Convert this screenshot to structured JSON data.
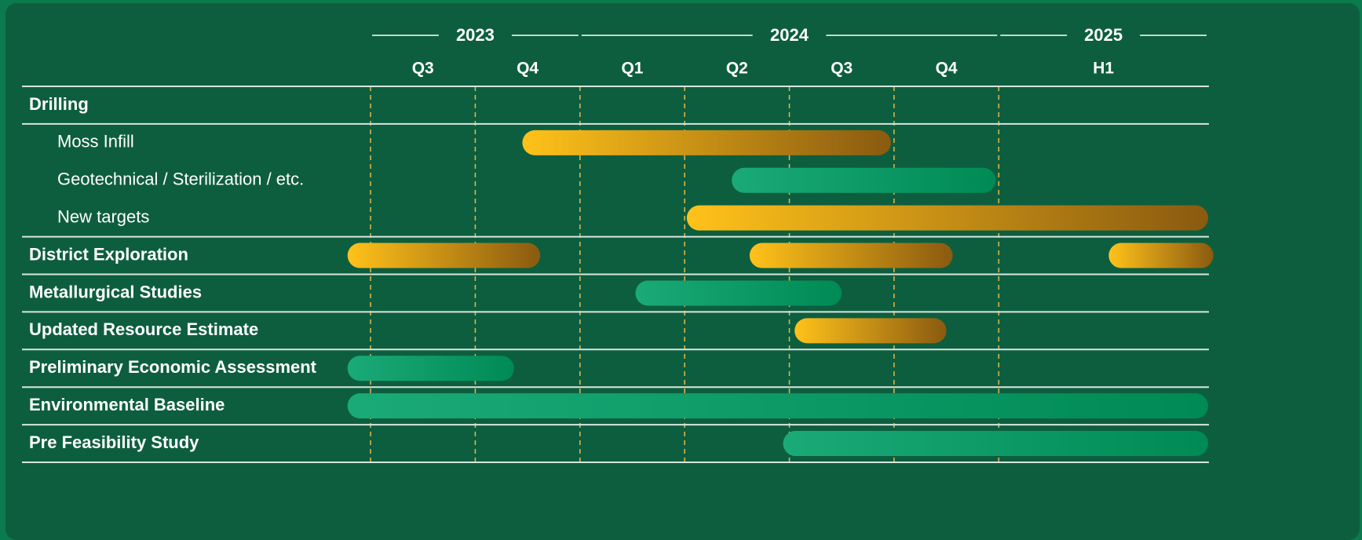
{
  "chart_data": {
    "type": "gantt",
    "xlim": [
      -0.25,
      8.05
    ],
    "years": [
      {
        "label": "2023",
        "start": 0,
        "end": 2
      },
      {
        "label": "2024",
        "start": 2,
        "end": 6
      },
      {
        "label": "2025",
        "start": 6,
        "end": 8
      }
    ],
    "periods": [
      {
        "label": "Q3",
        "start": 0,
        "end": 1
      },
      {
        "label": "Q4",
        "start": 1,
        "end": 2
      },
      {
        "label": "Q1",
        "start": 2,
        "end": 3
      },
      {
        "label": "Q2",
        "start": 3,
        "end": 4
      },
      {
        "label": "Q3",
        "start": 4,
        "end": 5
      },
      {
        "label": "Q4",
        "start": 5,
        "end": 6
      },
      {
        "label": "H1",
        "start": 6,
        "end": 8
      }
    ],
    "rows": [
      {
        "label": "Drilling",
        "heading": true,
        "bars": []
      },
      {
        "label": "Moss Infill",
        "heading": false,
        "bars": [
          {
            "start": 1.45,
            "end": 4.97,
            "color": [
              "#ffc21a",
              "#8a5a10"
            ]
          }
        ]
      },
      {
        "label": "Geotechnical / Sterilization / etc.",
        "heading": false,
        "bars": [
          {
            "start": 3.45,
            "end": 5.97,
            "color": [
              "#1aaa78",
              "#008a55"
            ]
          }
        ]
      },
      {
        "label": "New targets",
        "heading": false,
        "bars": [
          {
            "start": 3.02,
            "end": 8.0,
            "color": [
              "#ffc21a",
              "#8a5a10"
            ]
          }
        ]
      },
      {
        "label": "District Exploration",
        "heading": true,
        "bars": [
          {
            "start": -0.22,
            "end": 1.62,
            "color": [
              "#ffc21a",
              "#8a5a10"
            ]
          },
          {
            "start": 3.62,
            "end": 5.56,
            "color": [
              "#ffc21a",
              "#8a5a10"
            ]
          },
          {
            "start": 7.05,
            "end": 8.05,
            "color": [
              "#ffc21a",
              "#8a5a10"
            ]
          }
        ]
      },
      {
        "label": "Metallurgical Studies",
        "heading": true,
        "bars": [
          {
            "start": 2.53,
            "end": 4.5,
            "color": [
              "#1aaa78",
              "#008a55"
            ]
          }
        ]
      },
      {
        "label": "Updated Resource Estimate",
        "heading": true,
        "bars": [
          {
            "start": 4.05,
            "end": 5.5,
            "color": [
              "#ffc21a",
              "#8a5a10"
            ]
          }
        ]
      },
      {
        "label": "Preliminary Economic Assessment",
        "heading": true,
        "bars": [
          {
            "start": -0.22,
            "end": 1.37,
            "color": [
              "#1aaa78",
              "#008a55"
            ]
          }
        ]
      },
      {
        "label": "Environmental Baseline",
        "heading": true,
        "bars": [
          {
            "start": -0.22,
            "end": 8.0,
            "color": [
              "#1aaa78",
              "#008a55"
            ]
          }
        ]
      },
      {
        "label": "Pre Feasibility Study",
        "heading": true,
        "bars": [
          {
            "start": 3.94,
            "end": 8.0,
            "color": [
              "#1aaa78",
              "#008a55"
            ]
          }
        ]
      }
    ]
  }
}
